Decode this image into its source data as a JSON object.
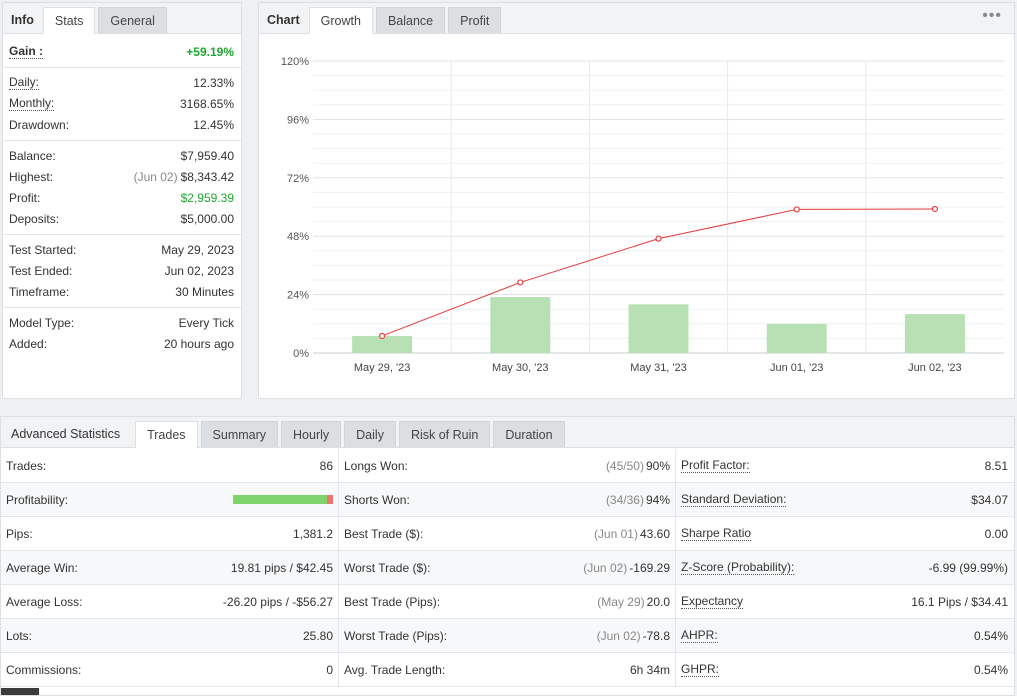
{
  "info_panel": {
    "tabs": [
      {
        "label": "Info",
        "active": false
      },
      {
        "label": "Stats",
        "active": true
      },
      {
        "label": "General",
        "active": false
      }
    ],
    "gain": {
      "label": "Gain :",
      "value": "+59.19%"
    },
    "group1": [
      {
        "label": "Daily:",
        "value": "12.33%"
      },
      {
        "label": "Monthly:",
        "value": "3168.65%"
      },
      {
        "label": "Drawdown:",
        "value": "12.45%"
      }
    ],
    "group2": [
      {
        "label": "Balance:",
        "value": "$7,959.40"
      },
      {
        "label": "Highest:",
        "note": "(Jun 02)",
        "value": "$8,343.42"
      },
      {
        "label": "Profit:",
        "value": "$2,959.39"
      },
      {
        "label": "Deposits:",
        "value": "$5,000.00"
      }
    ],
    "group3": [
      {
        "label": "Test Started:",
        "value": "May 29, 2023"
      },
      {
        "label": "Test Ended:",
        "value": "Jun 02, 2023"
      },
      {
        "label": "Timeframe:",
        "value": "30 Minutes"
      }
    ],
    "group4": [
      {
        "label": "Model Type:",
        "value": "Every Tick"
      },
      {
        "label": "Added:",
        "value": "20 hours ago"
      }
    ]
  },
  "chart_panel": {
    "tabs": [
      {
        "label": "Chart"
      },
      {
        "label": "Growth"
      },
      {
        "label": "Balance"
      },
      {
        "label": "Profit"
      }
    ],
    "menu_icon": "more-dots-icon"
  },
  "chart_data": {
    "type": "bar",
    "categories": [
      "May 29, '23",
      "May 30, '23",
      "May 31, '23",
      "Jun 01, '23",
      "Jun 02, '23"
    ],
    "series": [
      {
        "type": "bar",
        "values": [
          7,
          23,
          20,
          12,
          16
        ]
      },
      {
        "type": "line",
        "values": [
          7,
          29,
          47,
          59,
          59.19
        ]
      }
    ],
    "yticks": [
      "0%",
      "24%",
      "48%",
      "72%",
      "96%",
      "120%"
    ],
    "ylim": [
      0,
      120
    ],
    "grid": true,
    "colors": {
      "bar": "#b8e0b5",
      "line": "#e33b3b",
      "marker_fill": "#ffffff"
    }
  },
  "advanced": {
    "title": "Advanced Statistics",
    "tabs": [
      "Trades",
      "Summary",
      "Hourly",
      "Daily",
      "Risk of Ruin",
      "Duration"
    ],
    "rows": [
      {
        "c1": {
          "label": "Trades:",
          "value": "86"
        },
        "c2": {
          "label": "Longs Won:",
          "note": "(45/50)",
          "value": "90%"
        },
        "c3": {
          "label": "Profit Factor:",
          "value": "8.51"
        }
      },
      {
        "c1": {
          "label": "Profitability:",
          "value": "",
          "bar_good_fraction": 0.94
        },
        "c2": {
          "label": "Shorts Won:",
          "note": "(34/36)",
          "value": "94%"
        },
        "c3": {
          "label": "Standard Deviation:",
          "value": "$34.07"
        }
      },
      {
        "c1": {
          "label": "Pips:",
          "value": "1,381.2"
        },
        "c2": {
          "label": "Best Trade ($):",
          "note": "(Jun 01)",
          "value": "43.60"
        },
        "c3": {
          "label": "Sharpe Ratio",
          "value": "0.00"
        }
      },
      {
        "c1": {
          "label": "Average Win:",
          "value": "19.81 pips / $42.45"
        },
        "c2": {
          "label": "Worst Trade ($):",
          "note": "(Jun 02)",
          "value": "-169.29"
        },
        "c3": {
          "label": "Z-Score (Probability):",
          "value": "-6.99 (99.99%)"
        }
      },
      {
        "c1": {
          "label": "Average Loss:",
          "value": "-26.20 pips / -$56.27"
        },
        "c2": {
          "label": "Best Trade (Pips):",
          "note": "(May 29)",
          "value": "20.0"
        },
        "c3": {
          "label": "Expectancy",
          "value": "16.1 Pips / $34.41"
        }
      },
      {
        "c1": {
          "label": "Lots:",
          "value": "25.80"
        },
        "c2": {
          "label": "Worst Trade (Pips):",
          "note": "(Jun 02)",
          "value": "-78.8"
        },
        "c3": {
          "label": "AHPR:",
          "value": "0.54%"
        }
      },
      {
        "c1": {
          "label": "Commissions:",
          "value": "0"
        },
        "c2": {
          "label": "Avg. Trade Length:",
          "value": "6h 34m"
        },
        "c3": {
          "label": "GHPR:",
          "value": "0.54%"
        }
      }
    ]
  }
}
